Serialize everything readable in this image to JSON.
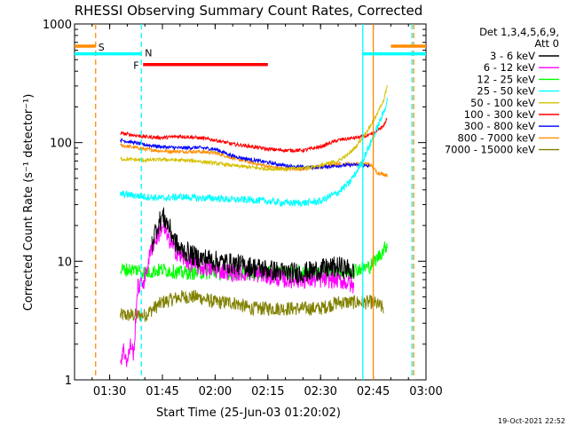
{
  "chart_data": {
    "type": "line",
    "title": "RHESSI Observing Summary Count Rates, Corrected",
    "xlabel": "Start Time (25-Jun-03 01:20:02)",
    "ylabel": "Corrected Count Rate (s⁻¹ detector⁻¹)",
    "timestamp": "19-Oct-2021 22:52",
    "x_unit": "minutes since 01:20",
    "xlim": [
      0,
      100
    ],
    "ylim": [
      1,
      1000
    ],
    "yscale": "log",
    "x_ticks": [
      {
        "value": 10,
        "label": "01:30"
      },
      {
        "value": 25,
        "label": "01:45"
      },
      {
        "value": 40,
        "label": "02:00"
      },
      {
        "value": 55,
        "label": "02:15"
      },
      {
        "value": 70,
        "label": "02:30"
      },
      {
        "value": 85,
        "label": "02:45"
      },
      {
        "value": 100,
        "label": "03:00"
      }
    ],
    "y_ticks": [
      {
        "value": 1,
        "label": "1"
      },
      {
        "value": 10,
        "label": "10"
      },
      {
        "value": 100,
        "label": "100"
      },
      {
        "value": 1000,
        "label": "1000"
      }
    ],
    "legend": {
      "position": "right",
      "header": [
        "Det 1,3,4,5,6,9,",
        "Att 0"
      ],
      "entries": [
        {
          "label": "3 - 6 keV",
          "color": "#000000"
        },
        {
          "label": "6 - 12 keV",
          "color": "#ff00ff"
        },
        {
          "label": "12 - 25 keV",
          "color": "#00ff00"
        },
        {
          "label": "25 - 50 keV",
          "color": "#00ffff"
        },
        {
          "label": "50 - 100 keV",
          "color": "#d4c000"
        },
        {
          "label": "100 - 300 keV",
          "color": "#ff0000"
        },
        {
          "label": "300 - 800 keV",
          "color": "#0000ff"
        },
        {
          "label": "800 - 7000 keV",
          "color": "#ff8c00"
        },
        {
          "label": "7000 - 15000 keV",
          "color": "#808000"
        }
      ]
    },
    "series": [
      {
        "name": "3 - 6 keV",
        "color": "#000000",
        "noise": 0.18,
        "x": [
          22,
          23,
          24,
          25,
          26,
          27,
          28,
          29,
          30,
          32,
          34,
          36,
          38,
          40,
          45,
          50,
          55,
          60,
          65,
          70,
          75,
          78,
          79.5
        ],
        "y": [
          14,
          18,
          21,
          24,
          22,
          19,
          16,
          14,
          12.5,
          12,
          11,
          10.5,
          10.5,
          10,
          9.5,
          9,
          8.5,
          8,
          8,
          8.5,
          9,
          8.5,
          8
        ]
      },
      {
        "name": "6 - 12 keV",
        "color": "#ff00ff",
        "noise": 0.15,
        "x": [
          13,
          14,
          15,
          16,
          17,
          18,
          19,
          20,
          22,
          24,
          25,
          26,
          28,
          30,
          32,
          35,
          40,
          45,
          50,
          55,
          60,
          65,
          70,
          75,
          78,
          79.5
        ],
        "y": [
          1.4,
          1.8,
          1.4,
          2,
          1.6,
          6,
          6.5,
          7,
          13,
          17,
          20,
          17,
          13,
          11,
          10,
          9,
          8.5,
          8,
          8,
          7.5,
          7,
          7,
          7,
          7,
          6.5,
          6
        ]
      },
      {
        "name": "12 - 25 keV",
        "color": "#00ff00",
        "noise": 0.12,
        "x": [
          13,
          18,
          20,
          25,
          30,
          35,
          40,
          45,
          50,
          55,
          60,
          65,
          70,
          75,
          80,
          84,
          86,
          88,
          89
        ],
        "y": [
          8.5,
          8.5,
          8,
          8.5,
          8,
          8,
          8,
          8,
          8,
          8,
          8,
          8,
          8,
          8,
          8.5,
          9,
          10.5,
          12.5,
          14
        ]
      },
      {
        "name": "25 - 50 keV",
        "color": "#00ffff",
        "noise": 0.06,
        "x": [
          13,
          20,
          25,
          30,
          35,
          40,
          45,
          50,
          55,
          60,
          65,
          70,
          75,
          78,
          80,
          82,
          84,
          86,
          88,
          89
        ],
        "y": [
          37,
          35,
          34,
          35,
          34,
          34,
          33,
          33,
          32,
          31,
          31,
          32,
          38,
          45,
          55,
          70,
          95,
          130,
          180,
          230
        ]
      },
      {
        "name": "50 - 100 keV",
        "color": "#d4c000",
        "noise": 0.03,
        "x": [
          13,
          20,
          25,
          30,
          35,
          40,
          45,
          50,
          55,
          60,
          65,
          70,
          75,
          78,
          80,
          82,
          84,
          86,
          88,
          89
        ],
        "y": [
          73,
          71,
          72,
          71,
          70,
          67,
          64,
          62,
          60,
          60,
          61,
          64,
          70,
          80,
          92,
          110,
          135,
          170,
          230,
          300
        ]
      },
      {
        "name": "100 - 300 keV",
        "color": "#ff0000",
        "noise": 0.03,
        "x": [
          13,
          20,
          25,
          30,
          35,
          40,
          45,
          50,
          55,
          60,
          65,
          70,
          75,
          80,
          84,
          86,
          88,
          89
        ],
        "y": [
          120,
          112,
          110,
          113,
          110,
          105,
          97,
          93,
          88,
          86,
          86,
          92,
          105,
          110,
          115,
          125,
          140,
          160
        ]
      },
      {
        "name": "300 - 800 keV",
        "color": "#0000ff",
        "noise": 0.03,
        "x": [
          13,
          20,
          25,
          30,
          35,
          40,
          45,
          50,
          55,
          60,
          65,
          70,
          75,
          80,
          84
        ],
        "y": [
          105,
          96,
          92,
          90,
          91,
          88,
          77,
          72,
          68,
          64,
          62,
          62,
          64,
          65,
          63
        ]
      },
      {
        "name": "800 - 7000 keV",
        "color": "#ff8c00",
        "noise": 0.03,
        "x": [
          13,
          20,
          25,
          30,
          35,
          40,
          45,
          50,
          55,
          60,
          65,
          70,
          75,
          80,
          84,
          86,
          88,
          89
        ],
        "y": [
          95,
          88,
          85,
          84,
          84,
          82,
          74,
          68,
          63,
          60,
          60,
          62,
          66,
          66,
          66,
          56,
          54,
          53
        ]
      },
      {
        "name": "7000 - 15000 keV",
        "color": "#808000",
        "noise": 0.12,
        "x": [
          13,
          20,
          25,
          30,
          35,
          40,
          45,
          50,
          55,
          60,
          65,
          70,
          75,
          80,
          85,
          88
        ],
        "y": [
          3.5,
          3.5,
          4.5,
          5,
          5,
          4.5,
          4.5,
          4,
          4,
          4,
          4,
          4,
          4.5,
          4.5,
          4.5,
          4
        ]
      }
    ],
    "annotations": [
      {
        "label": "S",
        "color": "#ff8c00"
      },
      {
        "label": "N",
        "color": "#00ffff"
      },
      {
        "label": "F",
        "color": "#ff0000"
      }
    ],
    "vertical_markers": [
      {
        "x": 6,
        "color": "#ff8c00",
        "style": "dashed"
      },
      {
        "x": 19,
        "color": "#00ffff",
        "style": "dashed"
      },
      {
        "x": 82,
        "color": "#00ffff",
        "style": "solid"
      },
      {
        "x": 85,
        "color": "#ff8c00",
        "style": "solid"
      },
      {
        "x": 96,
        "color": "#00ffff",
        "style": "dashed"
      },
      {
        "x": 96.5,
        "color": "#ff8c00",
        "style": "dashed"
      }
    ],
    "status_bars": [
      {
        "name": "S",
        "color": "#ff8c00",
        "x_start": 0,
        "x_end": 6
      },
      {
        "name": "N",
        "color": "#00ffff",
        "x_start": 0,
        "x_end": 19
      },
      {
        "name": "F",
        "color": "#ff0000",
        "x_start": 19.5,
        "x_end": 55
      },
      {
        "name": "N",
        "color": "#00ffff",
        "x_start": 82,
        "x_end": 100
      },
      {
        "name": "S",
        "color": "#ff8c00",
        "x_start": 90,
        "x_end": 100
      }
    ]
  }
}
